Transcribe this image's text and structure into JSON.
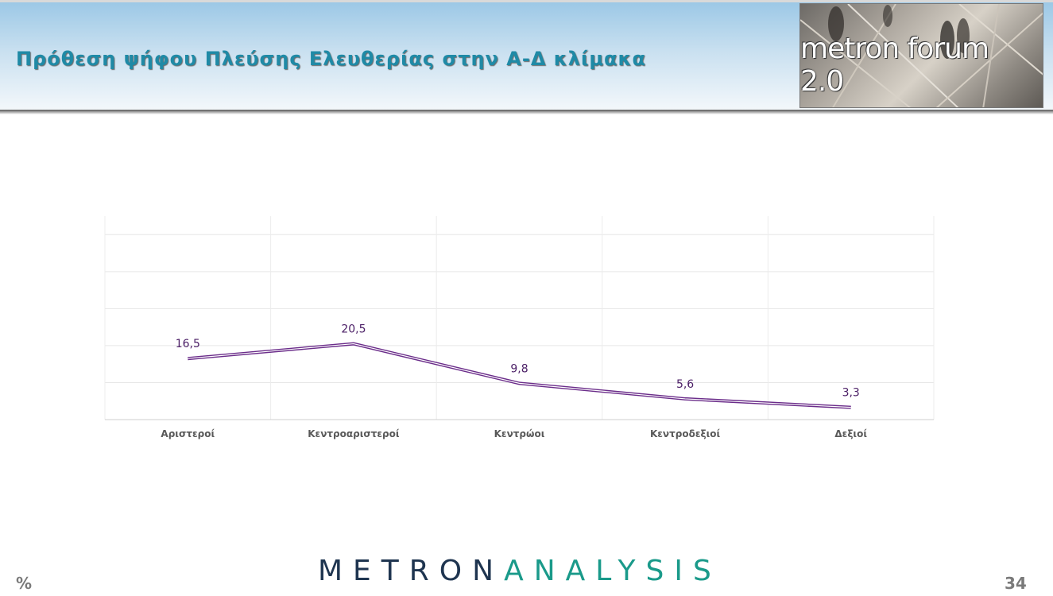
{
  "header": {
    "title": "Πρόθεση ψήφου Πλεύσης Ελευθερίας στην Α-Δ κλίμακα",
    "logo_text": "metron forum 2.0"
  },
  "chart_data": {
    "type": "line",
    "categories": [
      "Αριστεροί",
      "Κεντροαριστεροί",
      "Κεντρώοι",
      "Κεντροδεξιοί",
      "Δεξιοί"
    ],
    "series": [
      {
        "values": [
          16.5,
          20.5,
          9.8,
          5.6,
          3.3
        ],
        "labels": [
          "16,5",
          "20,5",
          "9,8",
          "5,6",
          "3,3"
        ]
      }
    ],
    "title": "",
    "xlabel": "",
    "ylabel": "",
    "ylim": [
      0,
      55
    ],
    "grid": true,
    "legend": "none",
    "line_color": "#6b2d8a"
  },
  "footer": {
    "brand_part1": "METRON",
    "brand_part2": "ANALYSIS",
    "unit": "%",
    "page_number": "34"
  }
}
